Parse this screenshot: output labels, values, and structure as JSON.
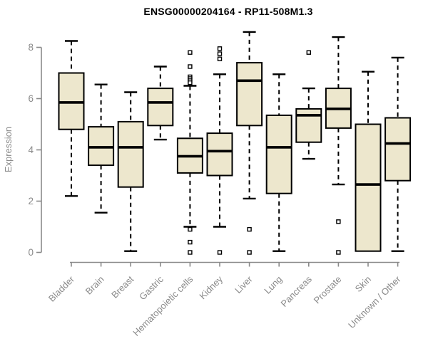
{
  "chart_data": {
    "type": "boxplot",
    "title": "ENSG00000204164 - RP11-508M1.3",
    "xlabel": "",
    "ylabel": "Expression",
    "ylim": [
      0,
      8
    ],
    "yticks": [
      0,
      2,
      4,
      6,
      8
    ],
    "grid": false,
    "legend": "none",
    "categories": [
      "Bladder",
      "Brain",
      "Breast",
      "Gastric",
      "Hematopoietic cells",
      "Kidney",
      "Liver",
      "Lung",
      "Pancreas",
      "Prostate",
      "Skin",
      "Unknown / Other"
    ],
    "series": [
      {
        "name": "Bladder",
        "whisker_low": 2.2,
        "q1": 4.8,
        "median": 5.85,
        "q3": 7.0,
        "whisker_high": 8.25,
        "outliers": []
      },
      {
        "name": "Brain",
        "whisker_low": 1.55,
        "q1": 3.4,
        "median": 4.1,
        "q3": 4.9,
        "whisker_high": 6.55,
        "outliers": []
      },
      {
        "name": "Breast",
        "whisker_low": 0.05,
        "q1": 2.55,
        "median": 4.1,
        "q3": 5.1,
        "whisker_high": 6.25,
        "outliers": []
      },
      {
        "name": "Gastric",
        "whisker_low": 4.4,
        "q1": 4.95,
        "median": 5.85,
        "q3": 6.4,
        "whisker_high": 7.25,
        "outliers": []
      },
      {
        "name": "Hematopoietic cells",
        "whisker_low": 1.0,
        "q1": 3.1,
        "median": 3.75,
        "q3": 4.45,
        "whisker_high": 6.5,
        "outliers": [
          7.8,
          7.25,
          6.85,
          6.78,
          6.7,
          6.62,
          0.9,
          0.4,
          0.0
        ]
      },
      {
        "name": "Kidney",
        "whisker_low": 1.0,
        "q1": 3.0,
        "median": 3.95,
        "q3": 4.65,
        "whisker_high": 6.95,
        "outliers": [
          7.95,
          7.75,
          7.55,
          0.0
        ]
      },
      {
        "name": "Liver",
        "whisker_low": 2.1,
        "q1": 4.95,
        "median": 6.7,
        "q3": 7.4,
        "whisker_high": 8.6,
        "outliers": [
          0.9,
          0.0
        ]
      },
      {
        "name": "Lung",
        "whisker_low": 0.05,
        "q1": 2.3,
        "median": 4.1,
        "q3": 5.35,
        "whisker_high": 6.95,
        "outliers": []
      },
      {
        "name": "Pancreas",
        "whisker_low": 3.65,
        "q1": 4.3,
        "median": 5.35,
        "q3": 5.6,
        "whisker_high": 6.4,
        "outliers": [
          7.8
        ]
      },
      {
        "name": "Prostate",
        "whisker_low": 2.65,
        "q1": 4.85,
        "median": 5.6,
        "q3": 6.4,
        "whisker_high": 8.4,
        "outliers": [
          1.2,
          0.0
        ]
      },
      {
        "name": "Skin",
        "whisker_low": 0.05,
        "q1": 0.05,
        "median": 2.65,
        "q3": 5.0,
        "whisker_high": 7.05,
        "outliers": []
      },
      {
        "name": "Unknown / Other",
        "whisker_low": 0.05,
        "q1": 2.8,
        "median": 4.25,
        "q3": 5.25,
        "whisker_high": 7.6,
        "outliers": []
      }
    ]
  },
  "colors": {
    "box_fill": "#EDE7CD",
    "box_border": "#000000",
    "median": "#000000",
    "whisker": "#000000",
    "outlier_fill": "#ffffff",
    "axis_line": "#8a8a8a",
    "tick_label": "#8a8a8a",
    "title": "#000000"
  }
}
